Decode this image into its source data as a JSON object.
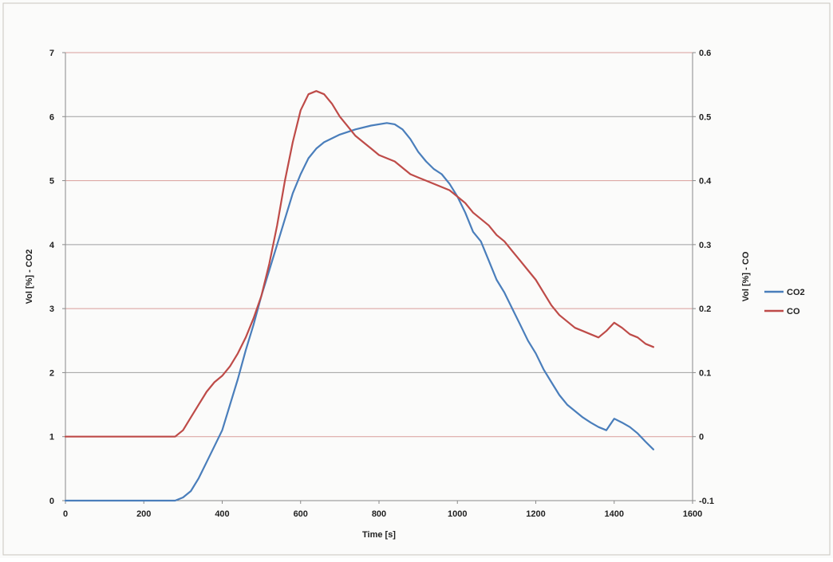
{
  "chart_data": {
    "type": "line",
    "title": "",
    "xlabel": "Time [s]",
    "ylabel_left": "Vol [%] - CO2",
    "ylabel_right": "Vol [%] - CO",
    "xlim": [
      0,
      1600
    ],
    "ylim_left": [
      0,
      7
    ],
    "ylim_right": [
      -0.1,
      0.6
    ],
    "x_ticks": [
      "0",
      "200",
      "400",
      "600",
      "800",
      "1000",
      "1200",
      "1400",
      "1600"
    ],
    "y_left_ticks": [
      "0",
      "1",
      "2",
      "3",
      "4",
      "5",
      "6",
      "7"
    ],
    "y_right_ticks": [
      "-0.1",
      "0",
      "0.1",
      "0.2",
      "0.3",
      "0.4",
      "0.5",
      "0.6"
    ],
    "grid": "horizontal",
    "legend_position": "right",
    "series": [
      {
        "name": "CO2",
        "axis": "left",
        "color": "#4a7ebb",
        "points": [
          [
            0,
            0.0
          ],
          [
            100,
            0.0
          ],
          [
            200,
            0.0
          ],
          [
            280,
            0.0
          ],
          [
            300,
            0.05
          ],
          [
            320,
            0.15
          ],
          [
            340,
            0.35
          ],
          [
            360,
            0.6
          ],
          [
            380,
            0.85
          ],
          [
            400,
            1.1
          ],
          [
            420,
            1.5
          ],
          [
            440,
            1.9
          ],
          [
            460,
            2.35
          ],
          [
            480,
            2.75
          ],
          [
            500,
            3.2
          ],
          [
            520,
            3.6
          ],
          [
            540,
            4.0
          ],
          [
            560,
            4.4
          ],
          [
            580,
            4.8
          ],
          [
            600,
            5.1
          ],
          [
            620,
            5.35
          ],
          [
            640,
            5.5
          ],
          [
            660,
            5.6
          ],
          [
            700,
            5.72
          ],
          [
            740,
            5.8
          ],
          [
            780,
            5.86
          ],
          [
            820,
            5.9
          ],
          [
            840,
            5.88
          ],
          [
            860,
            5.8
          ],
          [
            880,
            5.65
          ],
          [
            900,
            5.45
          ],
          [
            920,
            5.3
          ],
          [
            940,
            5.18
          ],
          [
            960,
            5.1
          ],
          [
            980,
            4.95
          ],
          [
            1000,
            4.75
          ],
          [
            1020,
            4.5
          ],
          [
            1040,
            4.2
          ],
          [
            1060,
            4.05
          ],
          [
            1080,
            3.75
          ],
          [
            1100,
            3.45
          ],
          [
            1120,
            3.25
          ],
          [
            1140,
            3.0
          ],
          [
            1160,
            2.75
          ],
          [
            1180,
            2.5
          ],
          [
            1200,
            2.3
          ],
          [
            1220,
            2.05
          ],
          [
            1240,
            1.85
          ],
          [
            1260,
            1.65
          ],
          [
            1280,
            1.5
          ],
          [
            1300,
            1.4
          ],
          [
            1320,
            1.3
          ],
          [
            1340,
            1.22
          ],
          [
            1360,
            1.15
          ],
          [
            1380,
            1.1
          ],
          [
            1400,
            1.28
          ],
          [
            1420,
            1.22
          ],
          [
            1440,
            1.15
          ],
          [
            1460,
            1.05
          ],
          [
            1480,
            0.92
          ],
          [
            1500,
            0.8
          ]
        ]
      },
      {
        "name": "CO",
        "axis": "right",
        "color": "#be4b48",
        "points": [
          [
            0,
            0.0
          ],
          [
            100,
            0.0
          ],
          [
            200,
            0.0
          ],
          [
            280,
            0.0
          ],
          [
            300,
            0.01
          ],
          [
            320,
            0.03
          ],
          [
            340,
            0.05
          ],
          [
            360,
            0.07
          ],
          [
            380,
            0.085
          ],
          [
            400,
            0.095
          ],
          [
            420,
            0.11
          ],
          [
            440,
            0.13
          ],
          [
            460,
            0.155
          ],
          [
            480,
            0.185
          ],
          [
            500,
            0.22
          ],
          [
            520,
            0.27
          ],
          [
            540,
            0.33
          ],
          [
            560,
            0.4
          ],
          [
            580,
            0.46
          ],
          [
            600,
            0.51
          ],
          [
            620,
            0.535
          ],
          [
            640,
            0.54
          ],
          [
            660,
            0.535
          ],
          [
            680,
            0.52
          ],
          [
            700,
            0.5
          ],
          [
            720,
            0.485
          ],
          [
            740,
            0.47
          ],
          [
            760,
            0.46
          ],
          [
            780,
            0.45
          ],
          [
            800,
            0.44
          ],
          [
            820,
            0.435
          ],
          [
            840,
            0.43
          ],
          [
            860,
            0.42
          ],
          [
            880,
            0.41
          ],
          [
            900,
            0.405
          ],
          [
            920,
            0.4
          ],
          [
            940,
            0.395
          ],
          [
            960,
            0.39
          ],
          [
            980,
            0.385
          ],
          [
            1000,
            0.375
          ],
          [
            1020,
            0.365
          ],
          [
            1040,
            0.35
          ],
          [
            1060,
            0.34
          ],
          [
            1080,
            0.33
          ],
          [
            1100,
            0.315
          ],
          [
            1120,
            0.305
          ],
          [
            1140,
            0.29
          ],
          [
            1160,
            0.275
          ],
          [
            1180,
            0.26
          ],
          [
            1200,
            0.245
          ],
          [
            1220,
            0.225
          ],
          [
            1240,
            0.205
          ],
          [
            1260,
            0.19
          ],
          [
            1280,
            0.18
          ],
          [
            1300,
            0.17
          ],
          [
            1320,
            0.165
          ],
          [
            1340,
            0.16
          ],
          [
            1360,
            0.155
          ],
          [
            1380,
            0.165
          ],
          [
            1400,
            0.178
          ],
          [
            1420,
            0.17
          ],
          [
            1440,
            0.16
          ],
          [
            1460,
            0.155
          ],
          [
            1480,
            0.145
          ],
          [
            1500,
            0.14
          ]
        ]
      }
    ]
  }
}
